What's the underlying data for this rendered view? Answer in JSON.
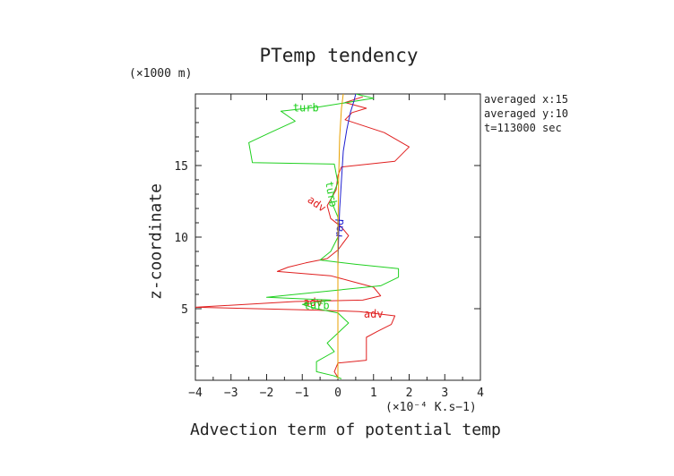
{
  "chart_data": {
    "type": "line",
    "title": "PTemp tendency",
    "xlabel": "Advection term of potential temp",
    "ylabel": "z-coordinate",
    "x_unit": "(×10⁻⁴ K.s−1)",
    "y_unit": "(×1000 m)",
    "xlim": [
      -4,
      4
    ],
    "ylim": [
      0,
      20
    ],
    "x_ticks": [
      -4,
      -3,
      -2,
      -1,
      0,
      1,
      2,
      3,
      4
    ],
    "y_ticks": [
      5,
      10,
      15
    ],
    "info": [
      "averaged  x:15",
      "averaged  y:10",
      "t=113000 sec"
    ],
    "series": [
      {
        "name": "adv",
        "color": "#e02020",
        "labels": [
          {
            "text": "adv",
            "x": -0.6,
            "y": 12.3,
            "rotate": 35
          },
          {
            "text": "adv",
            "x": -0.7,
            "y": 5.4,
            "rotate": 0
          },
          {
            "text": "adv",
            "x": 1.0,
            "y": 4.6,
            "rotate": 0
          }
        ],
        "points": [
          [
            0.0,
            0.2
          ],
          [
            -0.1,
            0.6
          ],
          [
            0.0,
            1.2
          ],
          [
            0.8,
            1.4
          ],
          [
            0.8,
            2.2
          ],
          [
            0.8,
            3.0
          ],
          [
            1.1,
            3.4
          ],
          [
            1.5,
            3.9
          ],
          [
            1.6,
            4.5
          ],
          [
            0.6,
            4.8
          ],
          [
            -0.6,
            4.9
          ],
          [
            -4.0,
            5.1
          ],
          [
            -1.2,
            5.5
          ],
          [
            0.7,
            5.6
          ],
          [
            1.2,
            5.9
          ],
          [
            1.0,
            6.5
          ],
          [
            0.4,
            6.9
          ],
          [
            -0.2,
            7.3
          ],
          [
            -1.7,
            7.6
          ],
          [
            -1.4,
            7.9
          ],
          [
            -0.9,
            8.2
          ],
          [
            -0.3,
            8.5
          ],
          [
            0.0,
            9.1
          ],
          [
            0.3,
            10.1
          ],
          [
            0.1,
            10.7
          ],
          [
            -0.2,
            11.3
          ],
          [
            -0.3,
            12.2
          ],
          [
            -0.05,
            13.3
          ],
          [
            0.0,
            14.3
          ],
          [
            0.1,
            14.9
          ],
          [
            1.6,
            15.3
          ],
          [
            2.0,
            16.3
          ],
          [
            1.3,
            17.3
          ],
          [
            0.2,
            18.2
          ],
          [
            0.4,
            18.7
          ],
          [
            0.8,
            19.0
          ],
          [
            0.2,
            19.4
          ],
          [
            0.7,
            19.8
          ]
        ]
      },
      {
        "name": "turb",
        "color": "#20d020",
        "labels": [
          {
            "text": "turb",
            "x": -0.9,
            "y": 19.0,
            "rotate": 0
          },
          {
            "text": "turb",
            "x": -0.6,
            "y": 5.2,
            "rotate": 0
          },
          {
            "text": "turb",
            "x": -0.2,
            "y": 13.0,
            "rotate": 80
          }
        ],
        "points": [
          [
            0.1,
            0.1
          ],
          [
            -0.1,
            0.3
          ],
          [
            -0.6,
            0.6
          ],
          [
            -0.6,
            1.3
          ],
          [
            -0.1,
            2.0
          ],
          [
            -0.3,
            2.6
          ],
          [
            0.0,
            3.3
          ],
          [
            0.3,
            4.0
          ],
          [
            0.0,
            4.7
          ],
          [
            -0.6,
            5.0
          ],
          [
            -1.0,
            5.3
          ],
          [
            -0.2,
            5.6
          ],
          [
            -2.0,
            5.8
          ],
          [
            0.0,
            6.3
          ],
          [
            1.2,
            6.6
          ],
          [
            1.7,
            7.2
          ],
          [
            1.7,
            7.8
          ],
          [
            0.5,
            8.1
          ],
          [
            -0.5,
            8.4
          ],
          [
            -0.2,
            9.0
          ],
          [
            0.0,
            10.0
          ],
          [
            0.0,
            11.4
          ],
          [
            -0.2,
            12.6
          ],
          [
            0.0,
            13.8
          ],
          [
            -0.1,
            15.1
          ],
          [
            -2.4,
            15.2
          ],
          [
            -2.5,
            16.6
          ],
          [
            -1.9,
            17.3
          ],
          [
            -1.2,
            18.1
          ],
          [
            -1.6,
            18.8
          ],
          [
            -0.5,
            19.1
          ],
          [
            1.0,
            19.7
          ],
          [
            0.5,
            20.0
          ]
        ]
      },
      {
        "name": "rad",
        "color": "#2020d0",
        "labels": [
          {
            "text": "rad",
            "x": 0.05,
            "y": 10.6,
            "rotate": -85
          }
        ],
        "points": [
          [
            0.0,
            0.1
          ],
          [
            0.0,
            2.0
          ],
          [
            0.0,
            4.0
          ],
          [
            0.0,
            6.0
          ],
          [
            0.0,
            8.0
          ],
          [
            0.02,
            10.0
          ],
          [
            0.05,
            12.0
          ],
          [
            0.1,
            14.0
          ],
          [
            0.15,
            16.0
          ],
          [
            0.25,
            17.5
          ],
          [
            0.35,
            18.7
          ],
          [
            0.45,
            19.5
          ],
          [
            0.5,
            20.0
          ]
        ]
      },
      {
        "name": "",
        "color": "#e8a000",
        "labels": [],
        "points": [
          [
            0.0,
            0.1
          ],
          [
            0.0,
            10.0
          ],
          [
            0.02,
            14.0
          ],
          [
            0.05,
            17.0
          ],
          [
            0.1,
            19.0
          ],
          [
            0.15,
            20.0
          ]
        ]
      }
    ]
  }
}
